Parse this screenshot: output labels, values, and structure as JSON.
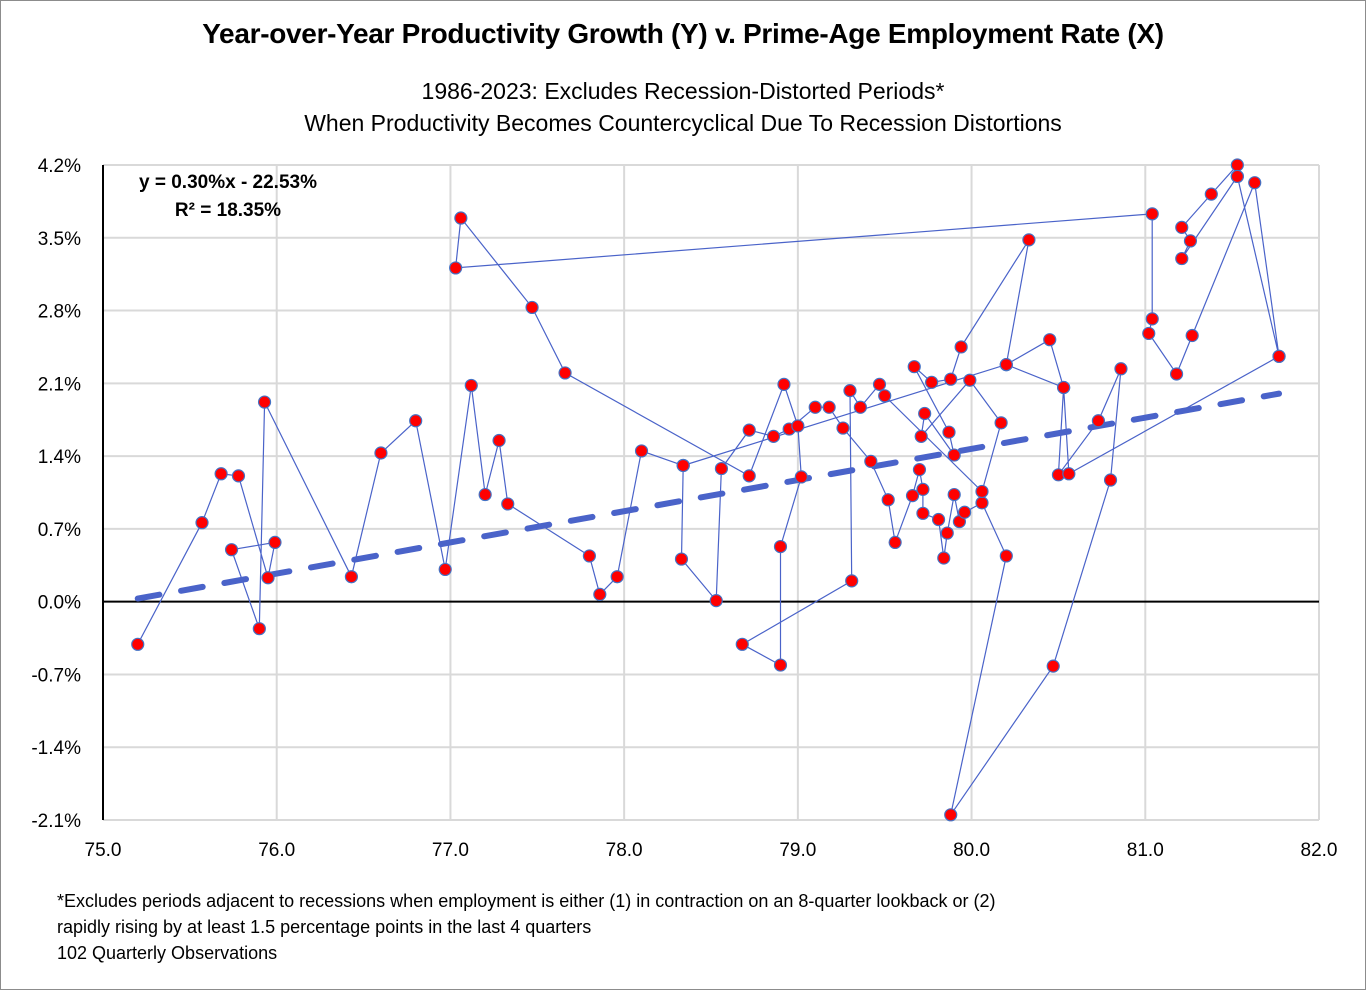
{
  "chart_data": {
    "type": "scatter",
    "title": "Year-over-Year Productivity Growth (Y) v. Prime-Age Employment Rate (X)",
    "subtitle": [
      "1986-2023: Excludes Recession-Distorted Periods*",
      "When Productivity Becomes Countercyclical Due To Recession Distortions"
    ],
    "xlabel": "",
    "ylabel": "",
    "xlim": [
      75.0,
      82.0
    ],
    "ylim": [
      -2.1,
      4.2
    ],
    "x_ticks": [
      "75.0",
      "76.0",
      "77.0",
      "78.0",
      "79.0",
      "80.0",
      "81.0",
      "82.0"
    ],
    "y_ticks": [
      "4.2%",
      "3.5%",
      "2.8%",
      "2.1%",
      "1.4%",
      "0.7%",
      "0.0%",
      "-0.7%",
      "-1.4%",
      "-2.1%"
    ],
    "grid": true,
    "connected": true,
    "marker_color": "#ff0000",
    "marker_edge_color": "#4472c4",
    "line_color": "#4a63c9",
    "trendline": {
      "type": "linear",
      "slope": 0.3,
      "intercept": -22.53,
      "equation": "y = 0.30%x - 22.53%",
      "r_squared": "R² = 18.35%",
      "color": "#4a63c9",
      "style": "dashed"
    },
    "series": [
      {
        "name": "Quarterly Observations",
        "points": [
          [
            75.2,
            -0.41
          ],
          [
            75.57,
            0.76
          ],
          [
            75.68,
            1.23
          ],
          [
            75.78,
            1.21
          ],
          [
            75.95,
            0.23
          ],
          [
            75.99,
            0.57
          ],
          [
            75.74,
            0.5
          ],
          [
            75.9,
            -0.26
          ],
          [
            75.93,
            1.92
          ],
          [
            76.43,
            0.24
          ],
          [
            76.6,
            1.43
          ],
          [
            76.8,
            1.74
          ],
          [
            76.97,
            0.31
          ],
          [
            77.12,
            2.08
          ],
          [
            77.2,
            1.03
          ],
          [
            77.28,
            1.55
          ],
          [
            77.33,
            0.94
          ],
          [
            77.8,
            0.44
          ],
          [
            77.86,
            0.07
          ],
          [
            77.96,
            0.24
          ],
          [
            78.1,
            1.45
          ],
          [
            78.34,
            1.31
          ],
          [
            78.33,
            0.41
          ],
          [
            78.53,
            0.01
          ],
          [
            78.56,
            1.28
          ],
          [
            78.72,
            1.65
          ],
          [
            78.86,
            1.59
          ],
          [
            78.95,
            1.66
          ],
          [
            79.1,
            1.87
          ],
          [
            79.18,
            1.87
          ],
          [
            79.26,
            1.67
          ],
          [
            79.42,
            1.35
          ],
          [
            79.52,
            0.98
          ],
          [
            79.56,
            0.57
          ],
          [
            79.66,
            1.02
          ],
          [
            79.7,
            1.27
          ],
          [
            79.72,
            1.08
          ],
          [
            79.72,
            0.85
          ],
          [
            79.81,
            0.79
          ],
          [
            79.84,
            0.42
          ],
          [
            79.86,
            0.66
          ],
          [
            79.9,
            1.03
          ],
          [
            79.93,
            0.77
          ],
          [
            79.96,
            0.86
          ],
          [
            80.06,
            0.95
          ],
          [
            80.2,
            0.44
          ],
          [
            79.88,
            -2.05
          ],
          [
            80.47,
            -0.62
          ],
          [
            80.8,
            1.17
          ],
          [
            80.86,
            2.24
          ],
          [
            80.73,
            1.74
          ],
          [
            80.5,
            1.22
          ],
          [
            80.53,
            2.06
          ],
          [
            80.45,
            2.52
          ],
          [
            80.2,
            2.28
          ],
          [
            80.33,
            3.48
          ],
          [
            79.94,
            2.45
          ],
          [
            79.88,
            2.14
          ],
          [
            79.77,
            2.11
          ],
          [
            79.67,
            2.26
          ],
          [
            79.87,
            1.63
          ],
          [
            79.9,
            1.41
          ],
          [
            79.73,
            1.81
          ],
          [
            79.71,
            1.59
          ],
          [
            79.99,
            2.13
          ],
          [
            80.17,
            1.72
          ],
          [
            80.06,
            1.06
          ],
          [
            79.5,
            1.98
          ],
          [
            79.47,
            2.09
          ],
          [
            79.36,
            1.87
          ],
          [
            79.3,
            2.03
          ],
          [
            79.31,
            0.2
          ],
          [
            78.68,
            -0.41
          ],
          [
            78.9,
            -0.61
          ],
          [
            78.9,
            0.53
          ],
          [
            79.02,
            1.2
          ],
          [
            79.0,
            1.69
          ],
          [
            78.92,
            2.09
          ],
          [
            78.72,
            1.21
          ],
          [
            77.66,
            2.2
          ],
          [
            77.47,
            2.83
          ],
          [
            77.06,
            3.69
          ],
          [
            77.03,
            3.21
          ],
          [
            81.04,
            3.73
          ],
          [
            81.04,
            2.72
          ],
          [
            81.02,
            2.58
          ],
          [
            81.18,
            2.19
          ],
          [
            81.27,
            2.56
          ],
          [
            81.63,
            4.03
          ],
          [
            81.77,
            2.36
          ],
          [
            81.53,
            4.09
          ],
          [
            81.53,
            4.2
          ],
          [
            81.38,
            3.92
          ],
          [
            81.21,
            3.6
          ],
          [
            81.26,
            3.47
          ],
          [
            81.21,
            3.3
          ],
          [
            81.53,
            4.09
          ],
          [
            81.77,
            2.36
          ],
          [
            80.56,
            1.23
          ],
          [
            80.53,
            2.06
          ],
          [
            80.2,
            2.28
          ],
          [
            78.34,
            1.31
          ]
        ]
      }
    ]
  },
  "footnotes": [
    "*Excludes periods adjacent to recessions when employment is either (1) in contraction on an 8-quarter lookback or (2)",
    "rapidly rising by at least 1.5 percentage points in the last 4 quarters",
    "102 Quarterly Observations"
  ]
}
